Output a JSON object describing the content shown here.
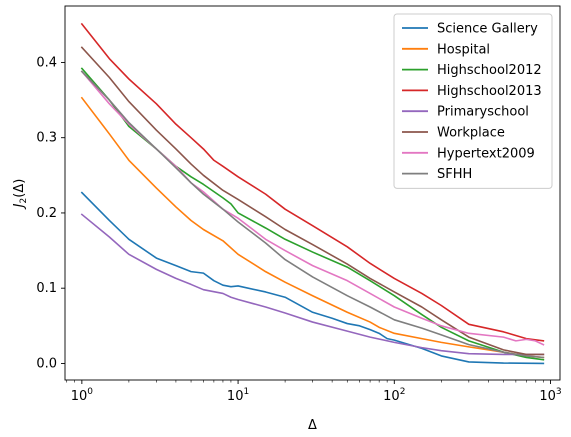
{
  "chart_data": {
    "type": "line",
    "title": "",
    "xlabel": "Δ",
    "ylabel_main": "J",
    "ylabel_sub": "2",
    "ylabel_rest": "(Δ)",
    "xscale": "log",
    "xlim": [
      0.78,
      1150
    ],
    "ylim": [
      -0.022,
      0.475
    ],
    "grid": false,
    "legend_position": "top-right",
    "x_ticks": [
      {
        "value": 1,
        "base": "10",
        "exp": "0"
      },
      {
        "value": 10,
        "base": "10",
        "exp": "1"
      },
      {
        "value": 100,
        "base": "10",
        "exp": "2"
      },
      {
        "value": 1000,
        "base": "10",
        "exp": "3"
      }
    ],
    "y_ticks": [
      {
        "value": 0.0,
        "label": "0.0"
      },
      {
        "value": 0.1,
        "label": "0.1"
      },
      {
        "value": 0.2,
        "label": "0.2"
      },
      {
        "value": 0.3,
        "label": "0.3"
      },
      {
        "value": 0.4,
        "label": "0.4"
      }
    ],
    "series": [
      {
        "name": "Science Gallery",
        "color": "#1f77b4",
        "points": [
          [
            1,
            0.227
          ],
          [
            1.5,
            0.19
          ],
          [
            2,
            0.165
          ],
          [
            3,
            0.14
          ],
          [
            4,
            0.13
          ],
          [
            5,
            0.122
          ],
          [
            6,
            0.12
          ],
          [
            7,
            0.11
          ],
          [
            8,
            0.104
          ],
          [
            9,
            0.102
          ],
          [
            10,
            0.103
          ],
          [
            15,
            0.095
          ],
          [
            20,
            0.088
          ],
          [
            30,
            0.068
          ],
          [
            40,
            0.06
          ],
          [
            50,
            0.053
          ],
          [
            60,
            0.05
          ],
          [
            70,
            0.045
          ],
          [
            80,
            0.04
          ],
          [
            90,
            0.033
          ],
          [
            100,
            0.031
          ],
          [
            150,
            0.02
          ],
          [
            200,
            0.01
          ],
          [
            300,
            0.002
          ],
          [
            500,
            0.0005
          ],
          [
            900,
            0.0
          ]
        ]
      },
      {
        "name": "Hospital",
        "color": "#ff7f0e",
        "points": [
          [
            1,
            0.353
          ],
          [
            1.5,
            0.305
          ],
          [
            2,
            0.27
          ],
          [
            3,
            0.233
          ],
          [
            4,
            0.208
          ],
          [
            5,
            0.19
          ],
          [
            6,
            0.178
          ],
          [
            8,
            0.163
          ],
          [
            10,
            0.145
          ],
          [
            15,
            0.122
          ],
          [
            20,
            0.108
          ],
          [
            30,
            0.09
          ],
          [
            50,
            0.068
          ],
          [
            70,
            0.055
          ],
          [
            80,
            0.048
          ],
          [
            100,
            0.04
          ],
          [
            150,
            0.033
          ],
          [
            200,
            0.028
          ],
          [
            300,
            0.022
          ],
          [
            500,
            0.015
          ],
          [
            700,
            0.01
          ],
          [
            900,
            0.008
          ]
        ]
      },
      {
        "name": "Highschool2012",
        "color": "#2ca02c",
        "points": [
          [
            1,
            0.392
          ],
          [
            1.5,
            0.35
          ],
          [
            2,
            0.315
          ],
          [
            3,
            0.285
          ],
          [
            4,
            0.262
          ],
          [
            5,
            0.248
          ],
          [
            6,
            0.238
          ],
          [
            8,
            0.22
          ],
          [
            9,
            0.212
          ],
          [
            10,
            0.2
          ],
          [
            15,
            0.18
          ],
          [
            20,
            0.165
          ],
          [
            30,
            0.148
          ],
          [
            50,
            0.128
          ],
          [
            70,
            0.11
          ],
          [
            100,
            0.09
          ],
          [
            150,
            0.065
          ],
          [
            200,
            0.048
          ],
          [
            300,
            0.03
          ],
          [
            500,
            0.015
          ],
          [
            700,
            0.008
          ],
          [
            900,
            0.005
          ]
        ]
      },
      {
        "name": "Highschool2013",
        "color": "#d62728",
        "points": [
          [
            1,
            0.451
          ],
          [
            1.5,
            0.405
          ],
          [
            2,
            0.378
          ],
          [
            3,
            0.345
          ],
          [
            4,
            0.318
          ],
          [
            5,
            0.3
          ],
          [
            6,
            0.285
          ],
          [
            7,
            0.27
          ],
          [
            8,
            0.262
          ],
          [
            10,
            0.248
          ],
          [
            15,
            0.225
          ],
          [
            20,
            0.205
          ],
          [
            30,
            0.183
          ],
          [
            50,
            0.155
          ],
          [
            70,
            0.133
          ],
          [
            100,
            0.113
          ],
          [
            150,
            0.093
          ],
          [
            200,
            0.077
          ],
          [
            300,
            0.052
          ],
          [
            500,
            0.042
          ],
          [
            700,
            0.033
          ],
          [
            900,
            0.03
          ]
        ]
      },
      {
        "name": "Primaryschool",
        "color": "#9467bd",
        "points": [
          [
            1,
            0.198
          ],
          [
            1.5,
            0.168
          ],
          [
            2,
            0.145
          ],
          [
            3,
            0.125
          ],
          [
            4,
            0.113
          ],
          [
            5,
            0.105
          ],
          [
            6,
            0.098
          ],
          [
            8,
            0.093
          ],
          [
            9,
            0.088
          ],
          [
            10,
            0.085
          ],
          [
            15,
            0.075
          ],
          [
            20,
            0.067
          ],
          [
            30,
            0.055
          ],
          [
            50,
            0.043
          ],
          [
            70,
            0.035
          ],
          [
            100,
            0.028
          ],
          [
            150,
            0.021
          ],
          [
            200,
            0.017
          ],
          [
            300,
            0.013
          ],
          [
            500,
            0.012
          ],
          [
            700,
            0.012
          ],
          [
            900,
            0.012
          ]
        ]
      },
      {
        "name": "Workplace",
        "color": "#8c564b",
        "points": [
          [
            1,
            0.42
          ],
          [
            1.5,
            0.38
          ],
          [
            2,
            0.348
          ],
          [
            3,
            0.31
          ],
          [
            4,
            0.285
          ],
          [
            5,
            0.265
          ],
          [
            6,
            0.25
          ],
          [
            8,
            0.23
          ],
          [
            10,
            0.218
          ],
          [
            15,
            0.195
          ],
          [
            20,
            0.178
          ],
          [
            30,
            0.158
          ],
          [
            50,
            0.132
          ],
          [
            70,
            0.113
          ],
          [
            100,
            0.095
          ],
          [
            150,
            0.075
          ],
          [
            200,
            0.058
          ],
          [
            300,
            0.035
          ],
          [
            500,
            0.018
          ],
          [
            700,
            0.012
          ],
          [
            900,
            0.012
          ]
        ]
      },
      {
        "name": "Hypertext2009",
        "color": "#e377c2",
        "points": [
          [
            1,
            0.388
          ],
          [
            1.5,
            0.345
          ],
          [
            2,
            0.318
          ],
          [
            3,
            0.285
          ],
          [
            4,
            0.262
          ],
          [
            5,
            0.24
          ],
          [
            6,
            0.228
          ],
          [
            8,
            0.205
          ],
          [
            10,
            0.193
          ],
          [
            15,
            0.165
          ],
          [
            20,
            0.15
          ],
          [
            30,
            0.13
          ],
          [
            50,
            0.11
          ],
          [
            70,
            0.093
          ],
          [
            100,
            0.075
          ],
          [
            150,
            0.06
          ],
          [
            200,
            0.05
          ],
          [
            300,
            0.04
          ],
          [
            500,
            0.035
          ],
          [
            600,
            0.03
          ],
          [
            700,
            0.032
          ],
          [
            800,
            0.03
          ],
          [
            900,
            0.025
          ]
        ]
      },
      {
        "name": "SFHH",
        "color": "#7f7f7f",
        "points": [
          [
            1,
            0.388
          ],
          [
            1.5,
            0.35
          ],
          [
            2,
            0.32
          ],
          [
            3,
            0.285
          ],
          [
            4,
            0.26
          ],
          [
            5,
            0.24
          ],
          [
            6,
            0.225
          ],
          [
            8,
            0.205
          ],
          [
            10,
            0.188
          ],
          [
            15,
            0.16
          ],
          [
            20,
            0.138
          ],
          [
            30,
            0.115
          ],
          [
            50,
            0.09
          ],
          [
            70,
            0.075
          ],
          [
            100,
            0.058
          ],
          [
            150,
            0.047
          ],
          [
            200,
            0.038
          ],
          [
            300,
            0.025
          ],
          [
            500,
            0.015
          ],
          [
            700,
            0.01
          ],
          [
            900,
            0.008
          ]
        ]
      }
    ]
  }
}
